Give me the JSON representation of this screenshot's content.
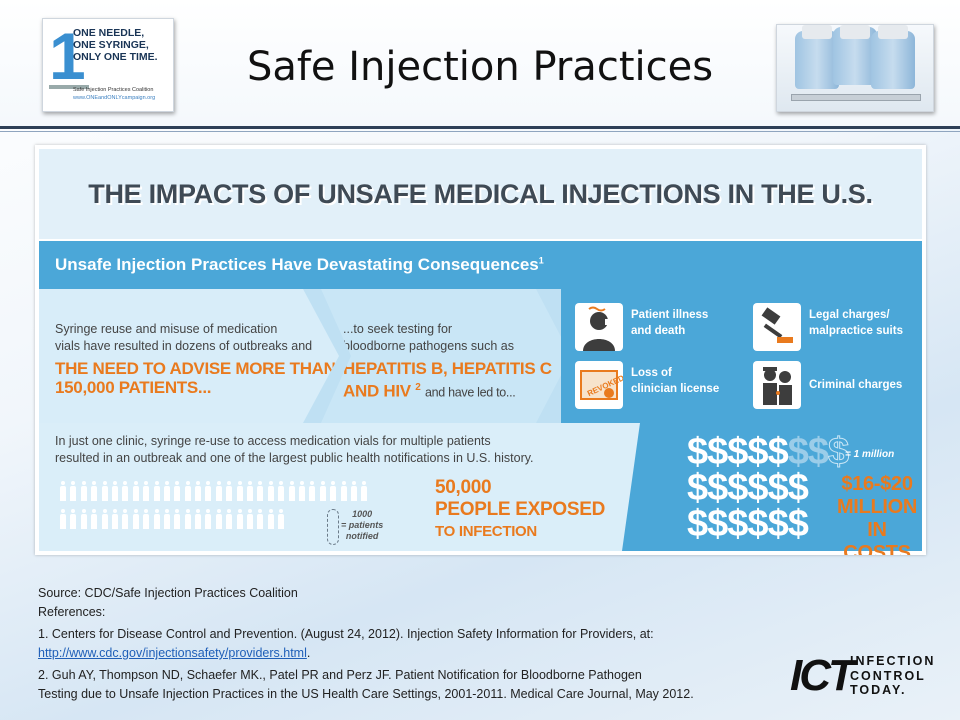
{
  "slide": {
    "title": "Safe Injection Practices",
    "logo": {
      "numeral": "1",
      "tagline": [
        "ONE NEEDLE,",
        "ONE SYRINGE,",
        "ONLY ONE TIME."
      ],
      "coalition": "Safe Injection Practices Coalition",
      "url": "www.ONEandONLYcampaign.org"
    }
  },
  "infographic": {
    "heading": "THE IMPACTS OF UNSAFE MEDICAL INJECTIONS IN THE U.S.",
    "band_title": "Unsafe Injection Practices Have Devastating Consequences",
    "band_ref": "1",
    "block1": {
      "text_lines": [
        "Syringe reuse and misuse of medication",
        "vials have resulted in dozens of outbreaks and"
      ],
      "highlight_lines": [
        "THE NEED TO ADVISE MORE THAN",
        "150,000 PATIENTS..."
      ]
    },
    "block2": {
      "text_lines": [
        "...to seek testing for",
        "bloodborne pathogens such as"
      ],
      "highlight_lines": [
        "HEPATITIS B, HEPATITIS C",
        "AND HIV"
      ],
      "highlight_ref": "2",
      "tail": "and have led to..."
    },
    "consequences": [
      {
        "lines": [
          "Patient illness",
          "and death"
        ],
        "icon": "patient-illness-icon"
      },
      {
        "lines": [
          "Legal charges/",
          "malpractice suits"
        ],
        "icon": "gavel-icon"
      },
      {
        "lines": [
          "Loss of",
          "clinician license"
        ],
        "icon": "revoked-license-icon"
      },
      {
        "lines": [
          "Criminal charges"
        ],
        "icon": "police-arrest-icon"
      }
    ],
    "license_stamp": "REVOKED",
    "bottom": {
      "text_lines": [
        "In just one clinic, syringe re-use to access medication vials for multiple patients",
        "resulted in an outbreak and one of the largest public health notifications in U.S. history."
      ],
      "people_legend": [
        "1000",
        "= patients",
        "notified"
      ],
      "exposed_lines": [
        "50,000",
        "PEOPLE EXPOSED",
        "TO INFECTION"
      ],
      "dollar_symbol": "$",
      "dollar_legend": "= 1 million",
      "cost_lines": [
        "$16-$20",
        "MILLION",
        "IN COSTS"
      ]
    }
  },
  "footer": {
    "source": "Source: CDC/Safe Injection Practices Coalition",
    "references_label": "References:",
    "ref1": "1. Centers for Disease Control and Prevention. (August 24, 2012).  Injection Safety Information for Providers, at:",
    "ref1_link": "http://www.cdc.gov/injectionsafety/providers.html",
    "ref1_end": ".",
    "ref2_line1": "2. Guh AY, Thompson ND, Schaefer MK., Patel PR and Perz JF. Patient Notification for Bloodborne Pathogen",
    "ref2_line2": "Testing due to Unsafe Injection Practices in the US Health Care Settings, 2001-2011.  Medical Care Journal, May 2012."
  },
  "brand": {
    "mark": "ICT",
    "words": [
      "INFECTION",
      "CONTROL",
      "TODAY."
    ]
  },
  "colors": {
    "accent_blue": "#4ba7d8",
    "highlight_orange": "#e97a1e",
    "header_rule": "#2d3f57"
  }
}
